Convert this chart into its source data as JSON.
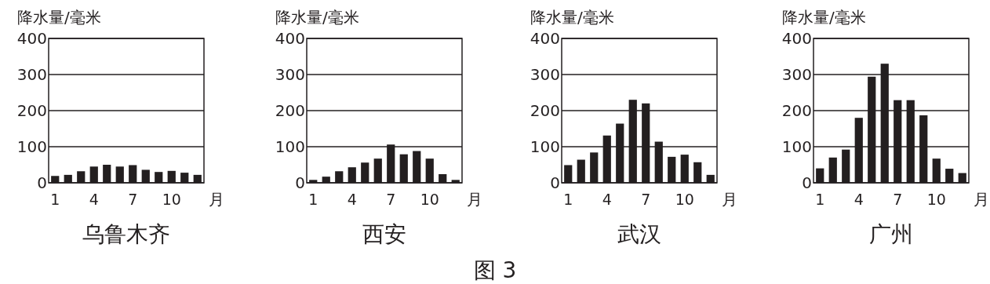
{
  "chart_data": [
    {
      "type": "bar",
      "title": "乌鲁木齐",
      "xlabel": "月",
      "ylabel": "降水量/毫米",
      "categories": [
        "1",
        null,
        null,
        "4",
        null,
        null,
        "7",
        null,
        null,
        "10",
        null,
        null
      ],
      "values": [
        19,
        22,
        32,
        45,
        50,
        45,
        49,
        36,
        30,
        33,
        28,
        22
      ],
      "color": "#231f20",
      "ylim": [
        0,
        400
      ],
      "yticks": [
        0,
        100,
        200,
        300,
        400
      ],
      "grid": "y"
    },
    {
      "type": "bar",
      "title": "西安",
      "xlabel": "月",
      "ylabel": "降水量/毫米",
      "categories": [
        "1",
        null,
        null,
        "4",
        null,
        null,
        "7",
        null,
        null,
        "10",
        null,
        null
      ],
      "values": [
        8,
        17,
        32,
        43,
        56,
        67,
        106,
        79,
        88,
        67,
        24,
        8
      ],
      "color": "#231f20",
      "ylim": [
        0,
        400
      ],
      "yticks": [
        0,
        100,
        200,
        300,
        400
      ],
      "grid": "y",
      "annotations": [
        "图 3"
      ]
    },
    {
      "type": "bar",
      "title": "武汉",
      "xlabel": "月",
      "ylabel": "降水量/毫米",
      "categories": [
        "1",
        null,
        null,
        "4",
        null,
        null,
        "7",
        null,
        null,
        "10",
        null,
        null
      ],
      "values": [
        49,
        64,
        84,
        131,
        164,
        230,
        220,
        114,
        72,
        78,
        57,
        22
      ],
      "color": "#231f20",
      "ylim": [
        0,
        400
      ],
      "yticks": [
        0,
        100,
        200,
        300,
        400
      ],
      "grid": "y"
    },
    {
      "type": "bar",
      "title": "广州",
      "xlabel": "月",
      "ylabel": "降水量/毫米",
      "categories": [
        "1",
        null,
        null,
        "4",
        null,
        null,
        "7",
        null,
        null,
        "10",
        null,
        null
      ],
      "values": [
        40,
        70,
        92,
        180,
        294,
        330,
        229,
        229,
        187,
        67,
        39,
        27
      ],
      "color": "#231f20",
      "ylim": [
        0,
        400
      ],
      "yticks": [
        0,
        100,
        200,
        300,
        400
      ],
      "grid": "y"
    }
  ]
}
